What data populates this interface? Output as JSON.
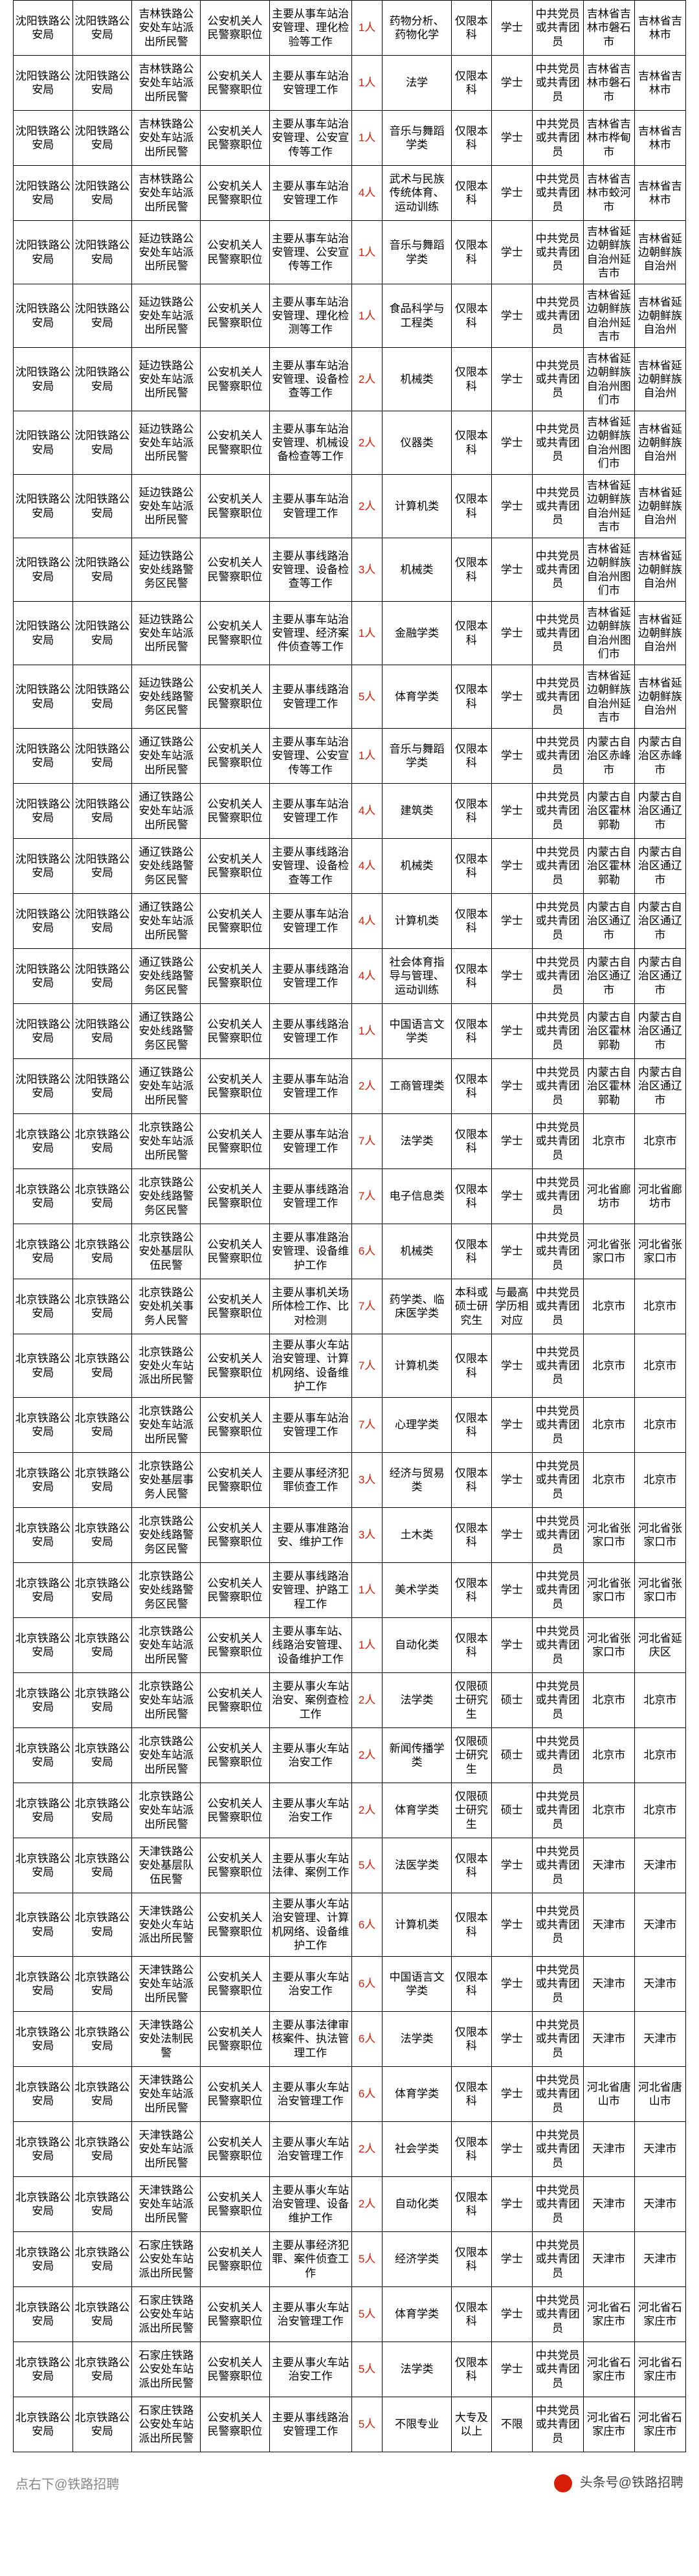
{
  "table": {
    "col_widths_pct": [
      8.8,
      8.8,
      10.2,
      10.2,
      12.2,
      4.6,
      10.2,
      6.0,
      6.0,
      7.6,
      7.6,
      7.6
    ],
    "border_color": "#000000",
    "text_color": "#000000",
    "count_color": "#d81e06",
    "rows": [
      {
        "c": [
          "沈阳铁路公安局",
          "沈阳铁路公安局",
          "吉林铁路公安处车站派出所民警",
          "公安机关人民警察职位",
          "主要从事车站治安管理、理化检验等工作",
          "1人",
          "药物分析、药物化学",
          "仅限本科",
          "学士",
          "中共党员或共青团员",
          "吉林省吉林市磐石市",
          "吉林省吉林市"
        ]
      },
      {
        "c": [
          "沈阳铁路公安局",
          "沈阳铁路公安局",
          "吉林铁路公安处车站派出所民警",
          "公安机关人民警察职位",
          "主要从事车站治安管理工作",
          "1人",
          "法学",
          "仅限本科",
          "学士",
          "中共党员或共青团员",
          "吉林省吉林市磐石市",
          "吉林省吉林市"
        ]
      },
      {
        "c": [
          "沈阳铁路公安局",
          "沈阳铁路公安局",
          "吉林铁路公安处车站派出所民警",
          "公安机关人民警察职位",
          "主要从事车站治安管理、公安宣传等工作",
          "1人",
          "音乐与舞蹈学类",
          "仅限本科",
          "学士",
          "中共党员或共青团员",
          "吉林省吉林市桦甸市",
          "吉林省吉林市"
        ]
      },
      {
        "c": [
          "沈阳铁路公安局",
          "沈阳铁路公安局",
          "吉林铁路公安处车站派出所民警",
          "公安机关人民警察职位",
          "主要从事车站治安管理工作",
          "4人",
          "武术与民族传统体育、运动训练",
          "仅限本科",
          "学士",
          "中共党员或共青团员",
          "吉林省吉林市蛟河市",
          "吉林省吉林市"
        ]
      },
      {
        "c": [
          "沈阳铁路公安局",
          "沈阳铁路公安局",
          "延边铁路公安处车站派出所民警",
          "公安机关人民警察职位",
          "主要从事车站治安管理、公安宣传等工作",
          "1人",
          "音乐与舞蹈学类",
          "仅限本科",
          "学士",
          "中共党员或共青团员",
          "吉林省延边朝鲜族自治州延吉市",
          "吉林省延边朝鲜族自治州"
        ]
      },
      {
        "c": [
          "沈阳铁路公安局",
          "沈阳铁路公安局",
          "延边铁路公安处车站派出所民警",
          "公安机关人民警察职位",
          "主要从事车站治安管理、理化检测等工作",
          "1人",
          "食品科学与工程类",
          "仅限本科",
          "学士",
          "中共党员或共青团员",
          "吉林省延边朝鲜族自治州延吉市",
          "吉林省延边朝鲜族自治州"
        ]
      },
      {
        "c": [
          "沈阳铁路公安局",
          "沈阳铁路公安局",
          "延边铁路公安处车站派出所民警",
          "公安机关人民警察职位",
          "主要从事车站治安管理、设备检查等工作",
          "2人",
          "机械类",
          "仅限本科",
          "学士",
          "中共党员或共青团员",
          "吉林省延边朝鲜族自治州图们市",
          "吉林省延边朝鲜族自治州"
        ]
      },
      {
        "c": [
          "沈阳铁路公安局",
          "沈阳铁路公安局",
          "延边铁路公安处车站派出所民警",
          "公安机关人民警察职位",
          "主要从事车站治安管理、机械设备检查等工作",
          "2人",
          "仪器类",
          "仅限本科",
          "学士",
          "中共党员或共青团员",
          "吉林省延边朝鲜族自治州图们市",
          "吉林省延边朝鲜族自治州"
        ]
      },
      {
        "c": [
          "沈阳铁路公安局",
          "沈阳铁路公安局",
          "延边铁路公安处车站派出所民警",
          "公安机关人民警察职位",
          "主要从事车站治安管理工作",
          "2人",
          "计算机类",
          "仅限本科",
          "学士",
          "中共党员或共青团员",
          "吉林省延边朝鲜族自治州延吉市",
          "吉林省延边朝鲜族自治州"
        ]
      },
      {
        "c": [
          "沈阳铁路公安局",
          "沈阳铁路公安局",
          "延边铁路公安处线路警务区民警",
          "公安机关人民警察职位",
          "主要从事线路治安管理、设备检查等工作",
          "3人",
          "机械类",
          "仅限本科",
          "学士",
          "中共党员或共青团员",
          "吉林省延边朝鲜族自治州图们市",
          "吉林省延边朝鲜族自治州"
        ]
      },
      {
        "c": [
          "沈阳铁路公安局",
          "沈阳铁路公安局",
          "延边铁路公安处车站派出所民警",
          "公安机关人民警察职位",
          "主要从事车站治安管理、经济案件侦查等工作",
          "1人",
          "金融学类",
          "仅限本科",
          "学士",
          "中共党员或共青团员",
          "吉林省延边朝鲜族自治州图们市",
          "吉林省延边朝鲜族自治州"
        ]
      },
      {
        "c": [
          "沈阳铁路公安局",
          "沈阳铁路公安局",
          "延边铁路公安处线路警务区民警",
          "公安机关人民警察职位",
          "主要从事线路治安管理工作",
          "5人",
          "体育学类",
          "仅限本科",
          "学士",
          "中共党员或共青团员",
          "吉林省延边朝鲜族自治州延吉市",
          "吉林省延边朝鲜族自治州"
        ]
      },
      {
        "c": [
          "沈阳铁路公安局",
          "沈阳铁路公安局",
          "通辽铁路公安处车站派出所民警",
          "公安机关人民警察职位",
          "主要从事车站治安管理、公安宣传等工作",
          "1人",
          "音乐与舞蹈学类",
          "仅限本科",
          "学士",
          "中共党员或共青团员",
          "内蒙古自治区赤峰市",
          "内蒙古自治区赤峰市"
        ]
      },
      {
        "c": [
          "沈阳铁路公安局",
          "沈阳铁路公安局",
          "通辽铁路公安处车站派出所民警",
          "公安机关人民警察职位",
          "主要从事车站治安管理工作",
          "4人",
          "建筑类",
          "仅限本科",
          "学士",
          "中共党员或共青团员",
          "内蒙古自治区霍林郭勒",
          "内蒙古自治区通辽市"
        ]
      },
      {
        "c": [
          "沈阳铁路公安局",
          "沈阳铁路公安局",
          "通辽铁路公安处线路警务区民警",
          "公安机关人民警察职位",
          "主要从事线路治安管理、设备检查等工作",
          "4人",
          "机械类",
          "仅限本科",
          "学士",
          "中共党员或共青团员",
          "内蒙古自治区霍林郭勒",
          "内蒙古自治区通辽市"
        ]
      },
      {
        "c": [
          "沈阳铁路公安局",
          "沈阳铁路公安局",
          "通辽铁路公安处车站派出所民警",
          "公安机关人民警察职位",
          "主要从事车站治安管理工作",
          "4人",
          "计算机类",
          "仅限本科",
          "学士",
          "中共党员或共青团员",
          "内蒙古自治区通辽市",
          "内蒙古自治区通辽市"
        ]
      },
      {
        "c": [
          "沈阳铁路公安局",
          "沈阳铁路公安局",
          "通辽铁路公安处线路警务区民警",
          "公安机关人民警察职位",
          "主要从事线路治安管理工作",
          "4人",
          "社会体育指导与管理、运动训练",
          "仅限本科",
          "学士",
          "中共党员或共青团员",
          "内蒙古自治区通辽市",
          "内蒙古自治区通辽市"
        ]
      },
      {
        "c": [
          "沈阳铁路公安局",
          "沈阳铁路公安局",
          "通辽铁路公安处线路警务区民警",
          "公安机关人民警察职位",
          "主要从事线路治安管理工作",
          "1人",
          "中国语言文学类",
          "仅限本科",
          "学士",
          "中共党员或共青团员",
          "内蒙古自治区霍林郭勒",
          "内蒙古自治区通辽市"
        ]
      },
      {
        "c": [
          "沈阳铁路公安局",
          "沈阳铁路公安局",
          "通辽铁路公安处车站派出所民警",
          "公安机关人民警察职位",
          "主要从事车站治安管理工作",
          "2人",
          "工商管理类",
          "仅限本科",
          "学士",
          "中共党员或共青团员",
          "内蒙古自治区霍林郭勒",
          "内蒙古自治区通辽市"
        ]
      },
      {
        "c": [
          "北京铁路公安局",
          "北京铁路公安局",
          "北京铁路公安处车站派出所民警",
          "公安机关人民警察职位",
          "主要从事车站治安管理工作",
          "7人",
          "法学类",
          "仅限本科",
          "学士",
          "中共党员或共青团员",
          "北京市",
          "北京市"
        ]
      },
      {
        "c": [
          "北京铁路公安局",
          "北京铁路公安局",
          "北京铁路公安处线路警务区民警",
          "公安机关人民警察职位",
          "主要从事线路治安管理工作",
          "7人",
          "电子信息类",
          "仅限本科",
          "学士",
          "中共党员或共青团员",
          "河北省廊坊市",
          "河北省廊坊市"
        ]
      },
      {
        "c": [
          "北京铁路公安局",
          "北京铁路公安局",
          "北京铁路公安处基层队伍民警",
          "公安机关人民警察职位",
          "主要从事准路治安管理、设备维护工作",
          "6人",
          "机械类",
          "仅限本科",
          "学士",
          "中共党员或共青团员",
          "河北省张家口市",
          "河北省张家口市"
        ]
      },
      {
        "c": [
          "北京铁路公安局",
          "北京铁路公安局",
          "北京铁路公安处机关事务人民警",
          "公安机关人民警察职位",
          "主要从事机关场所体检工作、比对检测",
          "7人",
          "药学类、临床医学类",
          "本科或硕士研究生",
          "与最高学历相对应",
          "中共党员或共青团员",
          "北京市",
          "北京市"
        ]
      },
      {
        "c": [
          "北京铁路公安局",
          "北京铁路公安局",
          "北京铁路公安处火车站派出所民警",
          "公安机关人民警察职位",
          "主要从事火车站治安管理、计算机网络、设备维护工作",
          "7人",
          "计算机类",
          "仅限本科",
          "学士",
          "中共党员或共青团员",
          "北京市",
          "北京市"
        ]
      },
      {
        "c": [
          "北京铁路公安局",
          "北京铁路公安局",
          "北京铁路公安处车站派出所民警",
          "公安机关人民警察职位",
          "主要从事车站治安管理工作",
          "7人",
          "心理学类",
          "仅限本科",
          "学士",
          "中共党员或共青团员",
          "北京市",
          "北京市"
        ]
      },
      {
        "c": [
          "北京铁路公安局",
          "北京铁路公安局",
          "北京铁路公安处基层事务人民警",
          "公安机关人民警察职位",
          "主要从事经济犯罪侦查工作",
          "3人",
          "经济与贸易类",
          "仅限本科",
          "学士",
          "中共党员或共青团员",
          "北京市",
          "北京市"
        ]
      },
      {
        "c": [
          "北京铁路公安局",
          "北京铁路公安局",
          "北京铁路公安处线路警务区民警",
          "公安机关人民警察职位",
          "主要从事准路治安、维护工作",
          "3人",
          "土木类",
          "仅限本科",
          "学士",
          "中共党员或共青团员",
          "河北省张家口市",
          "河北省张家口市"
        ]
      },
      {
        "c": [
          "北京铁路公安局",
          "北京铁路公安局",
          "北京铁路公安处线路警务区民警",
          "公安机关人民警察职位",
          "主要从事线路治安管理、护路工程工作",
          "1人",
          "美术学类",
          "仅限本科",
          "学士",
          "中共党员或共青团员",
          "河北省张家口市",
          "河北省张家口市"
        ]
      },
      {
        "c": [
          "北京铁路公安局",
          "北京铁路公安局",
          "北京铁路公安处车站派出所民警",
          "公安机关人民警察职位",
          "主要从事车站、线路治安管理、设备维护工作",
          "1人",
          "自动化类",
          "仅限本科",
          "学士",
          "中共党员或共青团员",
          "河北省张家口市",
          "河北省延庆区"
        ]
      },
      {
        "c": [
          "北京铁路公安局",
          "北京铁路公安局",
          "北京铁路公安处车站派出所民警",
          "公安机关人民警察职位",
          "主要从事火车站治安、案例查检工作",
          "2人",
          "法学类",
          "仅限硕士研究生",
          "硕士",
          "中共党员或共青团员",
          "北京市",
          "北京市"
        ]
      },
      {
        "c": [
          "北京铁路公安局",
          "北京铁路公安局",
          "北京铁路公安处车站派出所民警",
          "公安机关人民警察职位",
          "主要从事火车站治安工作",
          "2人",
          "新闻传播学类",
          "仅限硕士研究生",
          "硕士",
          "中共党员或共青团员",
          "北京市",
          "北京市"
        ]
      },
      {
        "c": [
          "北京铁路公安局",
          "北京铁路公安局",
          "北京铁路公安处车站派出所民警",
          "公安机关人民警察职位",
          "主要从事火车站治安工作",
          "2人",
          "体育学类",
          "仅限硕士研究生",
          "硕士",
          "中共党员或共青团员",
          "北京市",
          "北京市"
        ]
      },
      {
        "c": [
          "北京铁路公安局",
          "北京铁路公安局",
          "天津铁路公安处基层队伍民警",
          "公安机关人民警察职位",
          "主要从事火车站法律、案例工作",
          "5人",
          "法医学类",
          "仅限本科",
          "学士",
          "中共党员或共青团员",
          "天津市",
          "天津市"
        ]
      },
      {
        "c": [
          "北京铁路公安局",
          "北京铁路公安局",
          "天津铁路公安处火车站派出所民警",
          "公安机关人民警察职位",
          "主要从事火车站治安管理、计算机网络、设备维护工作",
          "6人",
          "计算机类",
          "仅限本科",
          "学士",
          "中共党员或共青团员",
          "天津市",
          "天津市"
        ]
      },
      {
        "c": [
          "北京铁路公安局",
          "北京铁路公安局",
          "天津铁路公安处车站派出所民警",
          "公安机关人民警察职位",
          "主要从事火车站治安工作",
          "6人",
          "中国语言文学类",
          "仅限本科",
          "学士",
          "中共党员或共青团员",
          "天津市",
          "天津市"
        ]
      },
      {
        "c": [
          "北京铁路公安局",
          "北京铁路公安局",
          "天津铁路公安处法制民警",
          "公安机关人民警察职位",
          "主要从事法律审核案件、执法管理工作",
          "6人",
          "法学类",
          "仅限本科",
          "学士",
          "中共党员或共青团员",
          "天津市",
          "天津市"
        ]
      },
      {
        "c": [
          "北京铁路公安局",
          "北京铁路公安局",
          "天津铁路公安处车站派出所民警",
          "公安机关人民警察职位",
          "主要从事火车站治安管理工作",
          "6人",
          "体育学类",
          "仅限本科",
          "学士",
          "中共党员或共青团员",
          "河北省唐山市",
          "河北省唐山市"
        ]
      },
      {
        "c": [
          "北京铁路公安局",
          "北京铁路公安局",
          "天津铁路公安处车站派出所民警",
          "公安机关人民警察职位",
          "主要从事火车站治安管理工作",
          "2人",
          "社会学类",
          "仅限本科",
          "学士",
          "中共党员或共青团员",
          "天津市",
          "天津市"
        ]
      },
      {
        "c": [
          "北京铁路公安局",
          "北京铁路公安局",
          "天津铁路公安处车站派出所民警",
          "公安机关人民警察职位",
          "主要从事火车站治安管理、设备维护工作",
          "2人",
          "自动化类",
          "仅限本科",
          "学士",
          "中共党员或共青团员",
          "天津市",
          "天津市"
        ]
      },
      {
        "c": [
          "北京铁路公安局",
          "北京铁路公安局",
          "石家庄铁路公安处车站派出所民警",
          "公安机关人民警察职位",
          "主要从事经济犯罪、案件侦查工作",
          "5人",
          "经济学类",
          "仅限本科",
          "学士",
          "中共党员或共青团员",
          "天津市",
          "天津市"
        ]
      },
      {
        "c": [
          "北京铁路公安局",
          "北京铁路公安局",
          "石家庄铁路公安处车站派出所民警",
          "公安机关人民警察职位",
          "主要从事火车站治安管理工作",
          "5人",
          "体育学类",
          "仅限本科",
          "学士",
          "中共党员或共青团员",
          "河北省石家庄市",
          "河北省石家庄市"
        ]
      },
      {
        "c": [
          "北京铁路公安局",
          "北京铁路公安局",
          "石家庄铁路公安处车站派出所民警",
          "公安机关人民警察职位",
          "主要从事火车站治安工作",
          "5人",
          "法学类",
          "仅限本科",
          "学士",
          "中共党员或共青团员",
          "河北省石家庄市",
          "河北省石家庄市"
        ]
      },
      {
        "c": [
          "北京铁路公安局",
          "北京铁路公安局",
          "石家庄铁路公安处车站派出所民警",
          "公安机关人民警察职位",
          "主要从事线路治安管理工作",
          "5人",
          "不限专业",
          "大专及以上",
          "不限",
          "中共党员或共青团员",
          "河北省石家庄市",
          "河北省石家庄市"
        ]
      }
    ]
  },
  "footer": {
    "left_text": "点右下@铁路招聘",
    "right_text": "头条号@铁路招聘"
  }
}
